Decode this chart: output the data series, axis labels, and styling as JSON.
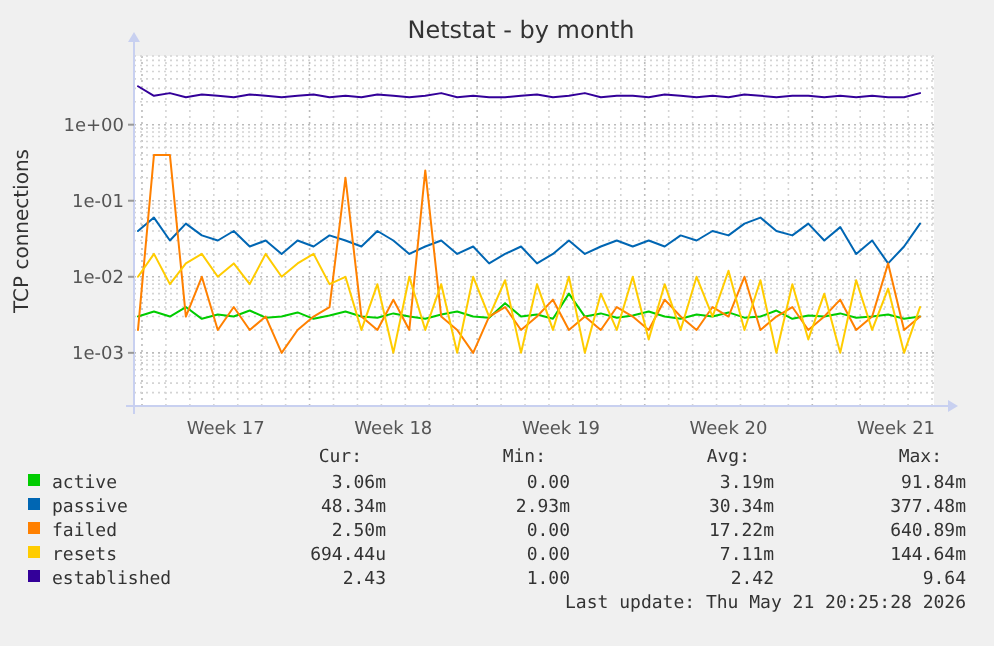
{
  "chart_data": {
    "type": "line",
    "title": "Netstat - by month",
    "ylabel": "TCP connections",
    "log": "y",
    "grid": true,
    "legend": "bottom",
    "line_style": "solid",
    "xlim": [
      "2026-04-19T16:00",
      "2026-05-23T02:00"
    ],
    "xticks": [
      {
        "value": "2026-04-23T12:00",
        "label": "Week 17"
      },
      {
        "value": "2026-04-30T12:00",
        "label": "Week 18"
      },
      {
        "value": "2026-05-07T12:00",
        "label": "Week 19"
      },
      {
        "value": "2026-05-14T12:00",
        "label": "Week 20"
      },
      {
        "value": "2026-05-21T12:00",
        "label": "Week 21"
      }
    ],
    "ylim": [
      0.0002,
      8
    ],
    "yticks": [
      {
        "value": 0.001,
        "label": "1e-03"
      },
      {
        "value": 0.01,
        "label": "1e-02"
      },
      {
        "value": 0.1,
        "label": "1e-01"
      },
      {
        "value": 1,
        "label": "1e+00"
      }
    ],
    "x": [
      "2026-04-19T20:00",
      "2026-04-20T12:00",
      "2026-04-21T04:00",
      "2026-04-21T20:00",
      "2026-04-22T12:00",
      "2026-04-23T04:00",
      "2026-04-23T20:00",
      "2026-04-24T12:00",
      "2026-04-25T04:00",
      "2026-04-25T20:00",
      "2026-04-26T12:00",
      "2026-04-27T04:00",
      "2026-04-27T20:00",
      "2026-04-28T12:00",
      "2026-04-29T04:00",
      "2026-04-29T20:00",
      "2026-04-30T12:00",
      "2026-05-01T04:00",
      "2026-05-01T20:00",
      "2026-05-02T12:00",
      "2026-05-03T04:00",
      "2026-05-03T20:00",
      "2026-05-04T12:00",
      "2026-05-05T04:00",
      "2026-05-05T20:00",
      "2026-05-06T12:00",
      "2026-05-07T04:00",
      "2026-05-07T20:00",
      "2026-05-08T12:00",
      "2026-05-09T04:00",
      "2026-05-09T20:00",
      "2026-05-10T12:00",
      "2026-05-11T04:00",
      "2026-05-11T20:00",
      "2026-05-12T12:00",
      "2026-05-13T04:00",
      "2026-05-13T20:00",
      "2026-05-14T12:00",
      "2026-05-15T04:00",
      "2026-05-15T20:00",
      "2026-05-16T12:00",
      "2026-05-17T04:00",
      "2026-05-17T20:00",
      "2026-05-18T12:00",
      "2026-05-19T04:00",
      "2026-05-19T20:00",
      "2026-05-20T12:00",
      "2026-05-21T04:00",
      "2026-05-21T20:00",
      "2026-05-22T12:00"
    ],
    "series": [
      {
        "name": "active",
        "color": "#00cc00",
        "values": [
          0.003,
          0.0035,
          0.003,
          0.004,
          0.0028,
          0.0032,
          0.003,
          0.0036,
          0.0029,
          0.003,
          0.0034,
          0.0028,
          0.0031,
          0.0035,
          0.003,
          0.0029,
          0.0033,
          0.003,
          0.0028,
          0.0032,
          0.0035,
          0.003,
          0.0029,
          0.0045,
          0.003,
          0.0032,
          0.0028,
          0.006,
          0.003,
          0.0033,
          0.0029,
          0.0031,
          0.0035,
          0.003,
          0.0028,
          0.0032,
          0.003,
          0.0034,
          0.0029,
          0.003,
          0.0036,
          0.0028,
          0.0031,
          0.003,
          0.0033,
          0.0029,
          0.003,
          0.0032,
          0.0028,
          0.003
        ]
      },
      {
        "name": "passive",
        "color": "#0066b3",
        "values": [
          0.04,
          0.06,
          0.03,
          0.05,
          0.035,
          0.03,
          0.04,
          0.025,
          0.03,
          0.02,
          0.03,
          0.025,
          0.035,
          0.03,
          0.025,
          0.04,
          0.03,
          0.02,
          0.025,
          0.03,
          0.02,
          0.025,
          0.015,
          0.02,
          0.025,
          0.015,
          0.02,
          0.03,
          0.02,
          0.025,
          0.03,
          0.025,
          0.03,
          0.025,
          0.035,
          0.03,
          0.04,
          0.035,
          0.05,
          0.06,
          0.04,
          0.035,
          0.05,
          0.03,
          0.045,
          0.02,
          0.03,
          0.015,
          0.025,
          0.05
        ]
      },
      {
        "name": "failed",
        "color": "#ff8000",
        "values": [
          0.002,
          0.4,
          0.4,
          0.003,
          0.01,
          0.002,
          0.004,
          0.002,
          0.003,
          0.001,
          0.002,
          0.003,
          0.004,
          0.2,
          0.003,
          0.002,
          0.005,
          0.002,
          0.25,
          0.003,
          0.002,
          0.001,
          0.003,
          0.004,
          0.002,
          0.003,
          0.005,
          0.002,
          0.003,
          0.002,
          0.004,
          0.003,
          0.002,
          0.005,
          0.003,
          0.002,
          0.004,
          0.003,
          0.01,
          0.002,
          0.003,
          0.004,
          0.002,
          0.003,
          0.005,
          0.002,
          0.003,
          0.015,
          0.002,
          0.003
        ]
      },
      {
        "name": "resets",
        "color": "#ffcc00",
        "values": [
          0.01,
          0.02,
          0.008,
          0.015,
          0.02,
          0.01,
          0.015,
          0.008,
          0.02,
          0.01,
          0.015,
          0.02,
          0.008,
          0.01,
          0.002,
          0.008,
          0.001,
          0.01,
          0.002,
          0.008,
          0.001,
          0.01,
          0.003,
          0.009,
          0.001,
          0.008,
          0.002,
          0.01,
          0.001,
          0.006,
          0.002,
          0.01,
          0.0015,
          0.008,
          0.002,
          0.01,
          0.003,
          0.012,
          0.002,
          0.009,
          0.001,
          0.008,
          0.0015,
          0.006,
          0.001,
          0.009,
          0.002,
          0.007,
          0.001,
          0.004
        ]
      },
      {
        "name": "established",
        "color": "#330099",
        "values": [
          3.2,
          2.4,
          2.6,
          2.3,
          2.5,
          2.4,
          2.3,
          2.5,
          2.4,
          2.3,
          2.4,
          2.5,
          2.3,
          2.4,
          2.3,
          2.5,
          2.4,
          2.3,
          2.4,
          2.6,
          2.3,
          2.4,
          2.3,
          2.3,
          2.4,
          2.5,
          2.3,
          2.4,
          2.6,
          2.3,
          2.4,
          2.4,
          2.3,
          2.5,
          2.4,
          2.3,
          2.4,
          2.3,
          2.5,
          2.4,
          2.3,
          2.4,
          2.4,
          2.3,
          2.4,
          2.3,
          2.4,
          2.3,
          2.3,
          2.6
        ]
      }
    ],
    "annotations": [
      "Cur:",
      "Min:",
      "Avg:",
      "Max:",
      "3.06m",
      "0.00",
      "3.19m",
      "91.84m",
      "48.34m",
      "2.93m",
      "30.34m",
      "377.48m",
      "2.50m",
      "0.00",
      "17.22m",
      "640.89m",
      "694.44u",
      "0.00",
      "7.11m",
      "144.64m",
      "2.43",
      "1.00",
      "2.42",
      "9.64",
      "Last update: Thu May 21 20:25:28 2026"
    ]
  }
}
